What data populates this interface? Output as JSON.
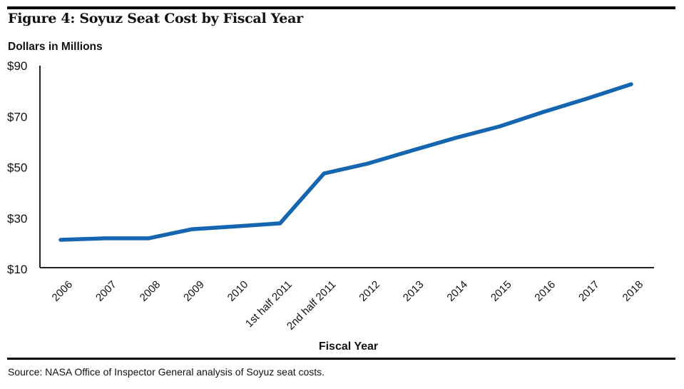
{
  "figure": {
    "title": "Figure 4:  Soyuz Seat Cost by Fiscal Year",
    "source": "Source:  NASA Office of Inspector General analysis of Soyuz seat costs."
  },
  "chart_data": {
    "type": "line",
    "title": "Figure 4:  Soyuz Seat Cost by Fiscal Year",
    "xlabel": "Fiscal Year",
    "ylabel": "Dollars in Millions",
    "ylim": [
      10,
      90
    ],
    "yticks": [
      10,
      30,
      50,
      70,
      90
    ],
    "ytick_labels": [
      "$10",
      "$30",
      "$50",
      "$70",
      "$90"
    ],
    "grid": false,
    "legend": "none",
    "categories": [
      "2006",
      "2007",
      "2008",
      "2009",
      "2010",
      "1st  half 2011",
      "2nd half 2011",
      "2012",
      "2013",
      "2014",
      "2015",
      "2016",
      "2017",
      "2018"
    ],
    "series": [
      {
        "name": "Soyuz Seat Cost",
        "color": "#1565b0",
        "values": [
          21.5,
          22.1,
          22.1,
          25.7,
          26.8,
          28.0,
          47.6,
          51.5,
          56.6,
          61.6,
          66.1,
          71.8,
          77.1,
          82.7
        ]
      }
    ]
  }
}
